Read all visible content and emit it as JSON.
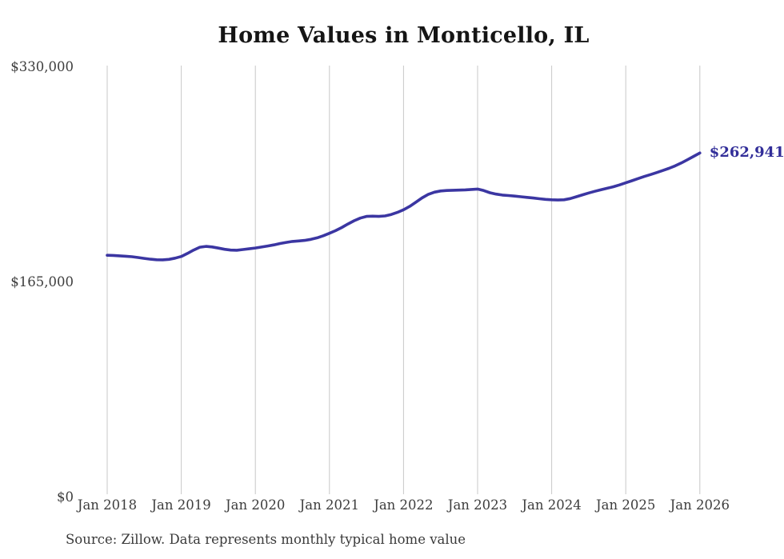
{
  "title": "Home Values in Monticello, IL",
  "source_note": "Source: Zillow. Data represents monthly typical home value",
  "latest_value_label": "$262,941",
  "colors": {
    "line": "#3b36a2",
    "end_label": "#322e99",
    "gridline": "#c8c8c8",
    "axis_text": "#3d3d3d",
    "title_text": "#151515",
    "background": "#ffffff"
  },
  "chart_data": {
    "type": "line",
    "title": "Home Values in Monticello, IL",
    "xlabel": "",
    "ylabel": "",
    "x_start": "2018-01",
    "x_end": "2026-01",
    "frequency": "monthly",
    "x_tick_labels": [
      "Jan 2018",
      "Jan 2019",
      "Jan 2020",
      "Jan 2021",
      "Jan 2022",
      "Jan 2023",
      "Jan 2024",
      "Jan 2025",
      "Jan 2026"
    ],
    "y_ticks": [
      {
        "label": "$0",
        "value": 0
      },
      {
        "label": "$165,000",
        "value": 165000
      },
      {
        "label": "$330,000",
        "value": 330000
      }
    ],
    "ylim": [
      0,
      330000
    ],
    "grid": "vertical-only",
    "legend": "none",
    "last_value": 262941,
    "last_value_label": "$262,941",
    "series": [
      {
        "name": "Typical home value",
        "monthly_values": [
          184500,
          184400,
          184100,
          183800,
          183400,
          182800,
          182100,
          181500,
          181100,
          181000,
          181400,
          182300,
          183600,
          185900,
          188500,
          190700,
          191300,
          190900,
          190000,
          189100,
          188500,
          188400,
          188900,
          189500,
          190100,
          190800,
          191600,
          192500,
          193500,
          194400,
          195100,
          195500,
          195900,
          196700,
          197900,
          199500,
          201400,
          203400,
          205800,
          208500,
          211000,
          213000,
          214300,
          214500,
          214300,
          214700,
          215800,
          217400,
          219400,
          222000,
          225200,
          228500,
          231200,
          232900,
          233800,
          234200,
          234400,
          234500,
          234700,
          235000,
          235300,
          234100,
          232500,
          231400,
          230700,
          230300,
          229900,
          229400,
          228900,
          228400,
          227900,
          227400,
          227100,
          226900,
          227100,
          228000,
          229400,
          230900,
          232300,
          233600,
          234800,
          235900,
          237100,
          238500,
          240100,
          241700,
          243300,
          244900,
          246400,
          247900,
          249500,
          251200,
          253100,
          255300,
          257800,
          260400,
          262941
        ]
      }
    ]
  }
}
